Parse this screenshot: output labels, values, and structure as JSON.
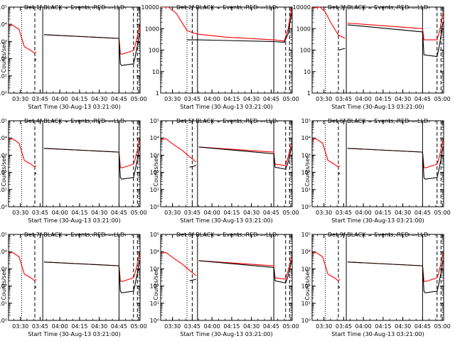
{
  "chart_data": [
    {
      "type": "line",
      "scale_y": "log",
      "ylim": [
        1,
        100000
      ],
      "title": "Det 1f BLACK = Events, RED = LLD",
      "ylabel": "Counts/sec",
      "xlabel": "Start Time (30-Aug-13 03:21:00)",
      "ytick_labels": [
        "10⁰",
        "10¹",
        "10²",
        "10³",
        "10⁴",
        "10⁵"
      ],
      "xtick_labels": [
        "03:30",
        "03:45",
        "04:00",
        "04:15",
        "04:30",
        "04:45",
        "05:00"
      ],
      "xlim_minutes": [
        0,
        100
      ],
      "vlines": [
        {
          "x": 10,
          "style": "dotted"
        },
        {
          "x": 20,
          "style": "dashed"
        },
        {
          "x": 26,
          "style": "solid"
        },
        {
          "x": 84,
          "style": "solid"
        },
        {
          "x": 95,
          "style": "dashed"
        },
        {
          "x": 98,
          "style": "dashed"
        }
      ],
      "series": [
        {
          "color": "#ff0000",
          "x": [
            0,
            3,
            8,
            12,
            17,
            20,
            21,
            26,
            27,
            84,
            85,
            86,
            95,
            96,
            98,
            99.5
          ],
          "y": [
            8000,
            9000,
            5000,
            500,
            300,
            200,
            250,
            0,
            2500,
            1500,
            200,
            180,
            300,
            500,
            2000,
            8000
          ]
        },
        {
          "color": "#000000",
          "x": [
            20,
            21,
            26,
            27,
            84,
            85,
            86,
            95,
            96,
            98,
            99.5
          ],
          "y": [
            100,
            80,
            0,
            2500,
            1500,
            50,
            40,
            50,
            100,
            600,
            3000
          ]
        }
      ]
    },
    {
      "type": "line",
      "scale_y": "log",
      "ylim": [
        1,
        10000
      ],
      "title": "Det 2f BLACK = Events, RED = LLD",
      "ylabel": "",
      "xlabel": "Start Time (30-Aug-13 03:21:00)",
      "ytick_labels": [
        "1",
        "10",
        "100",
        "1000",
        "10000"
      ],
      "xtick_labels": [
        "03:30",
        "03:45",
        "04:00",
        "04:15",
        "04:30",
        "04:45",
        "05:00"
      ],
      "xlim_minutes": [
        0,
        100
      ],
      "vlines": [
        {
          "x": 20,
          "style": "dotted"
        },
        {
          "x": 24,
          "style": "dashed"
        },
        {
          "x": 28,
          "style": "solid"
        },
        {
          "x": 86,
          "style": "solid"
        },
        {
          "x": 95,
          "style": "dashed"
        },
        {
          "x": 98,
          "style": "dashed"
        }
      ],
      "series": [
        {
          "color": "#ff0000",
          "x": [
            0,
            6,
            12,
            20,
            28,
            50,
            86,
            94,
            97,
            99.5
          ],
          "y": [
            10000,
            10000,
            5000,
            800,
            550,
            400,
            300,
            260,
            1000,
            9000
          ]
        },
        {
          "color": "#000000",
          "x": [
            20,
            28,
            50,
            86,
            94,
            97,
            99.5
          ],
          "y": [
            300,
            300,
            280,
            250,
            230,
            600,
            5000
          ]
        }
      ]
    },
    {
      "type": "line",
      "scale_y": "log",
      "ylim": [
        1,
        10000
      ],
      "title": "Det 3f BLACK = Events, RED = LLD",
      "ylabel": "",
      "xlabel": "Start Time (30-Aug-13 03:21:00)",
      "ytick_labels": [
        "1",
        "10",
        "100",
        "1000",
        "10000"
      ],
      "xtick_labels": [
        "03:30",
        "03:45",
        "04:00",
        "04:15",
        "04:30",
        "04:45",
        "05:00"
      ],
      "xlim_minutes": [
        0,
        100
      ],
      "vlines": [
        {
          "x": 10,
          "style": "dotted"
        },
        {
          "x": 20,
          "style": "dashed"
        },
        {
          "x": 26,
          "style": "solid"
        },
        {
          "x": 84,
          "style": "solid"
        },
        {
          "x": 95,
          "style": "dashed"
        },
        {
          "x": 98,
          "style": "dashed"
        }
      ],
      "series": [
        {
          "color": "#ff0000",
          "x": [
            0,
            6,
            10,
            14,
            20,
            25,
            26,
            27,
            84,
            85,
            95,
            97,
            99.5
          ],
          "y": [
            9000,
            10000,
            6000,
            2000,
            500,
            350,
            0,
            1800,
            1000,
            300,
            300,
            800,
            5000
          ]
        },
        {
          "color": "#000000",
          "x": [
            20,
            25,
            26,
            27,
            84,
            85,
            95,
            97,
            99.5
          ],
          "y": [
            100,
            120,
            0,
            1500,
            700,
            60,
            50,
            200,
            2000
          ]
        }
      ]
    },
    {
      "type": "line",
      "scale_y": "log",
      "ylim": [
        1,
        100000
      ],
      "title": "Det 4f BLACK = Events, RED = LLD",
      "ylabel": "Counts/sec",
      "xlabel": "Start Time (30-Aug-13 03:21:00)",
      "ytick_labels": [
        "10⁰",
        "10¹",
        "10²",
        "10³",
        "10⁴",
        "10⁵"
      ],
      "xtick_labels": [
        "03:30",
        "03:45",
        "04:00",
        "04:15",
        "04:30",
        "04:45",
        "05:00"
      ],
      "xlim_minutes": [
        0,
        100
      ],
      "vlines": [
        {
          "x": 10,
          "style": "dotted"
        },
        {
          "x": 20,
          "style": "dashed"
        },
        {
          "x": 26,
          "style": "solid"
        },
        {
          "x": 84,
          "style": "solid"
        },
        {
          "x": 95,
          "style": "dashed"
        },
        {
          "x": 98,
          "style": "dashed"
        }
      ],
      "series": [
        {
          "color": "#ff0000",
          "x": [
            0,
            3,
            8,
            12,
            17,
            20,
            21,
            26,
            27,
            84,
            85,
            86,
            95,
            96,
            98,
            99.5
          ],
          "y": [
            8000,
            9000,
            5000,
            500,
            300,
            200,
            250,
            0,
            2500,
            1500,
            200,
            180,
            300,
            500,
            2000,
            8000
          ]
        },
        {
          "color": "#000000",
          "x": [
            20,
            21,
            26,
            27,
            84,
            85,
            86,
            95,
            96,
            98,
            99.5
          ],
          "y": [
            100,
            80,
            0,
            2500,
            1500,
            50,
            40,
            50,
            100,
            600,
            3000
          ]
        }
      ]
    },
    {
      "type": "line",
      "scale_y": "log",
      "ylim": [
        1,
        100000
      ],
      "title": "Det 5f BLACK = Events, RED = LLD",
      "ylabel": "Counts/sec",
      "xlabel": "Start Time (30-Aug-13 03:21:00)",
      "ytick_labels": [
        "10⁰",
        "10¹",
        "10²",
        "10³",
        "10⁴",
        "10⁵"
      ],
      "xtick_labels": [
        "03:30",
        "03:45",
        "04:00",
        "04:15",
        "04:30",
        "04:45",
        "05:00"
      ],
      "xlim_minutes": [
        0,
        100
      ],
      "vlines": [
        {
          "x": 20,
          "style": "dotted"
        },
        {
          "x": 24,
          "style": "dashed"
        },
        {
          "x": 28,
          "style": "solid"
        },
        {
          "x": 86,
          "style": "solid"
        },
        {
          "x": 95,
          "style": "dashed"
        },
        {
          "x": 98,
          "style": "dashed"
        }
      ],
      "series": [
        {
          "color": "#ff0000",
          "x": [
            0,
            4,
            10,
            16,
            22,
            27,
            28,
            29,
            86,
            87,
            95,
            97,
            99.5
          ],
          "y": [
            8000,
            9000,
            4000,
            2000,
            800,
            400,
            0,
            3000,
            1500,
            300,
            250,
            800,
            5000
          ]
        },
        {
          "color": "#000000",
          "x": [
            22,
            27,
            28,
            29,
            86,
            87,
            95,
            97,
            99.5
          ],
          "y": [
            200,
            250,
            0,
            3000,
            1200,
            200,
            150,
            400,
            3000
          ]
        }
      ]
    },
    {
      "type": "line",
      "scale_y": "log",
      "ylim": [
        1,
        100000
      ],
      "title": "Det 6f BLACK = Events, RED = LLD",
      "ylabel": "Counts/sec",
      "xlabel": "Start Time (30-Aug-13 03:21:00)",
      "ytick_labels": [
        "10⁰",
        "10¹",
        "10²",
        "10³",
        "10⁴",
        "10⁵"
      ],
      "xtick_labels": [
        "03:30",
        "03:45",
        "04:00",
        "04:15",
        "04:30",
        "04:45",
        "05:00"
      ],
      "xlim_minutes": [
        0,
        100
      ],
      "vlines": [
        {
          "x": 10,
          "style": "dotted"
        },
        {
          "x": 20,
          "style": "dashed"
        },
        {
          "x": 26,
          "style": "solid"
        },
        {
          "x": 84,
          "style": "solid"
        },
        {
          "x": 95,
          "style": "dashed"
        },
        {
          "x": 98,
          "style": "dashed"
        }
      ],
      "series": [
        {
          "color": "#ff0000",
          "x": [
            0,
            3,
            8,
            12,
            17,
            20,
            21,
            26,
            27,
            84,
            85,
            86,
            95,
            96,
            98,
            99.5
          ],
          "y": [
            8000,
            9000,
            5000,
            500,
            300,
            200,
            250,
            0,
            2500,
            1500,
            200,
            180,
            300,
            500,
            2000,
            8000
          ]
        },
        {
          "color": "#000000",
          "x": [
            20,
            21,
            26,
            27,
            84,
            85,
            86,
            95,
            96,
            98,
            99.5
          ],
          "y": [
            100,
            80,
            0,
            2500,
            1500,
            50,
            40,
            50,
            100,
            600,
            3000
          ]
        }
      ]
    },
    {
      "type": "line",
      "scale_y": "log",
      "ylim": [
        1,
        100000
      ],
      "title": "Det 7f BLACK = Events, RED = LLD",
      "ylabel": "Counts/sec",
      "xlabel": "Start Time (30-Aug-13 03:21:00)",
      "ytick_labels": [
        "10⁰",
        "10¹",
        "10²",
        "10³",
        "10⁴",
        "10⁵"
      ],
      "xtick_labels": [
        "03:30",
        "03:45",
        "04:00",
        "04:15",
        "04:30",
        "04:45",
        "05:00"
      ],
      "xlim_minutes": [
        0,
        100
      ],
      "vlines": [
        {
          "x": 10,
          "style": "dotted"
        },
        {
          "x": 20,
          "style": "dashed"
        },
        {
          "x": 26,
          "style": "solid"
        },
        {
          "x": 84,
          "style": "solid"
        },
        {
          "x": 95,
          "style": "dashed"
        },
        {
          "x": 98,
          "style": "dashed"
        }
      ],
      "series": [
        {
          "color": "#ff0000",
          "x": [
            0,
            3,
            8,
            12,
            17,
            20,
            21,
            26,
            27,
            84,
            85,
            86,
            95,
            96,
            98,
            99.5
          ],
          "y": [
            8000,
            9000,
            5000,
            500,
            300,
            200,
            250,
            0,
            2500,
            1500,
            200,
            180,
            300,
            500,
            2000,
            8000
          ]
        },
        {
          "color": "#000000",
          "x": [
            20,
            21,
            26,
            27,
            84,
            85,
            86,
            95,
            96,
            98,
            99.5
          ],
          "y": [
            100,
            80,
            0,
            2500,
            1500,
            50,
            40,
            50,
            100,
            600,
            3000
          ]
        }
      ]
    },
    {
      "type": "line",
      "scale_y": "log",
      "ylim": [
        1,
        100000
      ],
      "title": "Det 8f BLACK = Events, RED = LLD",
      "ylabel": "Counts/sec",
      "xlabel": "Start Time (30-Aug-13 03:21:00)",
      "ytick_labels": [
        "10⁰",
        "10¹",
        "10²",
        "10³",
        "10⁴",
        "10⁵"
      ],
      "xtick_labels": [
        "03:30",
        "03:45",
        "04:00",
        "04:15",
        "04:30",
        "04:45",
        "05:00"
      ],
      "xlim_minutes": [
        0,
        100
      ],
      "vlines": [
        {
          "x": 20,
          "style": "dotted"
        },
        {
          "x": 24,
          "style": "dashed"
        },
        {
          "x": 28,
          "style": "solid"
        },
        {
          "x": 86,
          "style": "solid"
        },
        {
          "x": 95,
          "style": "dashed"
        },
        {
          "x": 98,
          "style": "dashed"
        }
      ],
      "series": [
        {
          "color": "#ff0000",
          "x": [
            0,
            4,
            10,
            16,
            22,
            27,
            28,
            29,
            86,
            87,
            95,
            97,
            99.5
          ],
          "y": [
            8000,
            9000,
            4000,
            2000,
            800,
            400,
            0,
            3000,
            1500,
            300,
            250,
            800,
            5000
          ]
        },
        {
          "color": "#000000",
          "x": [
            22,
            27,
            28,
            29,
            86,
            87,
            95,
            97,
            99.5
          ],
          "y": [
            200,
            250,
            0,
            3000,
            1200,
            200,
            150,
            400,
            3000
          ]
        }
      ]
    },
    {
      "type": "line",
      "scale_y": "log",
      "ylim": [
        1,
        100000
      ],
      "title": "Det 9f BLACK = Events, RED = LLD",
      "ylabel": "Counts/sec",
      "xlabel": "Start Time (30-Aug-13 03:21:00)",
      "ytick_labels": [
        "10⁰",
        "10¹",
        "10²",
        "10³",
        "10⁴",
        "10⁵"
      ],
      "xtick_labels": [
        "03:30",
        "03:45",
        "04:00",
        "04:15",
        "04:30",
        "04:45",
        "05:00"
      ],
      "xlim_minutes": [
        0,
        100
      ],
      "vlines": [
        {
          "x": 10,
          "style": "dotted"
        },
        {
          "x": 20,
          "style": "dashed"
        },
        {
          "x": 26,
          "style": "solid"
        },
        {
          "x": 84,
          "style": "solid"
        },
        {
          "x": 95,
          "style": "dashed"
        },
        {
          "x": 98,
          "style": "dashed"
        }
      ],
      "series": [
        {
          "color": "#ff0000",
          "x": [
            0,
            3,
            8,
            12,
            17,
            20,
            21,
            26,
            27,
            84,
            85,
            86,
            95,
            96,
            98,
            99.5
          ],
          "y": [
            8000,
            9000,
            5000,
            500,
            300,
            200,
            250,
            0,
            2500,
            1500,
            200,
            180,
            300,
            500,
            2000,
            8000
          ]
        },
        {
          "color": "#000000",
          "x": [
            20,
            21,
            26,
            27,
            84,
            85,
            86,
            95,
            96,
            98,
            99.5
          ],
          "y": [
            100,
            80,
            0,
            2500,
            1500,
            50,
            40,
            50,
            100,
            600,
            3000
          ]
        }
      ]
    }
  ]
}
